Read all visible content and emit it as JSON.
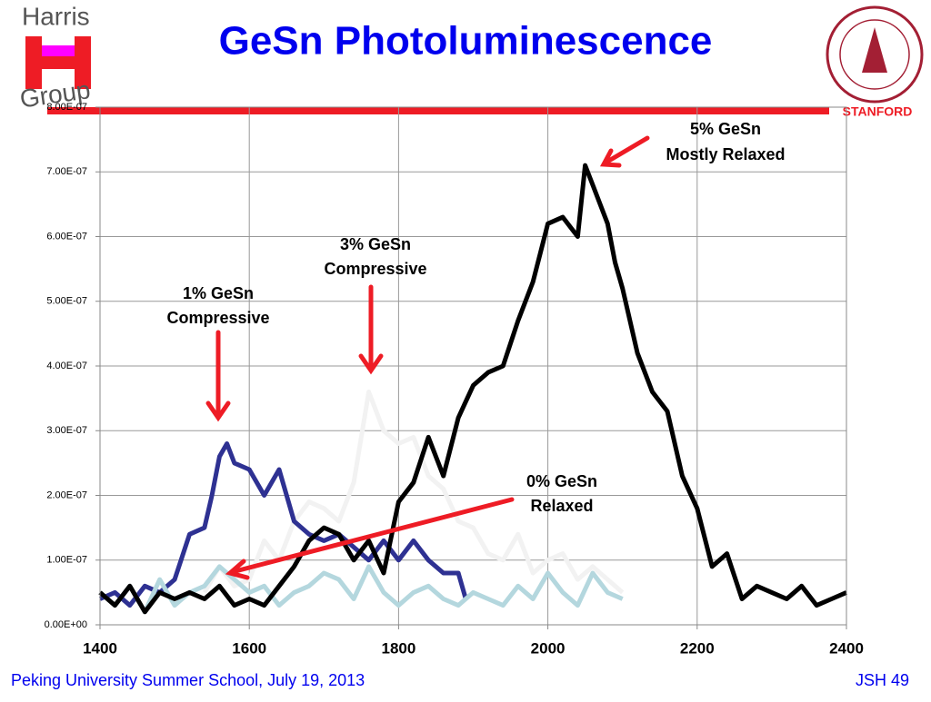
{
  "slide": {
    "logo_top": "Harris",
    "logo_bottom": "Group",
    "stanford": "STANFORD",
    "footer_left": "Peking University Summer School, July 19, 2013",
    "footer_right": "JSH 49"
  },
  "chart_data": {
    "type": "line",
    "title": "GeSn Photoluminescence",
    "annotations": [
      [
        "5% GeSn",
        "Mostly Relaxed"
      ],
      [
        "3% GeSn",
        "Compressive"
      ],
      [
        "1% GeSn",
        "Compressive"
      ],
      [
        "0% GeSn",
        "Relaxed"
      ]
    ],
    "xlim": [
      1400,
      2400
    ],
    "xticks": [
      1400,
      1600,
      1800,
      2000,
      2200,
      2400
    ],
    "ylim": [
      0,
      8e-07
    ],
    "yticks": [
      {
        "value": 0,
        "label": "0.00E+00"
      },
      {
        "value": 1e-07,
        "label": "1.00E-07"
      },
      {
        "value": 2e-07,
        "label": "2.00E-07"
      },
      {
        "value": 3e-07,
        "label": "3.00E-07"
      },
      {
        "value": 4e-07,
        "label": "4.00E-07"
      },
      {
        "value": 5e-07,
        "label": "5.00E-07"
      },
      {
        "value": 6e-07,
        "label": "6.00E-07"
      },
      {
        "value": 7e-07,
        "label": "7.00E-07"
      },
      {
        "value": 8e-07,
        "label": "8.00E-07"
      }
    ],
    "grid": true,
    "series": [
      {
        "color": "#f2f2f2",
        "x": [
          1540,
          1560,
          1580,
          1600,
          1620,
          1640,
          1660,
          1680,
          1700,
          1720,
          1740,
          1760,
          1780,
          1800,
          1820,
          1840,
          1860,
          1880,
          1900,
          1920,
          1940,
          1960,
          1980,
          2000,
          2020,
          2040,
          2060,
          2080,
          2100
        ],
        "values": [
          5e-08,
          9e-08,
          6e-08,
          7e-08,
          1.3e-07,
          1e-07,
          1.6e-07,
          1.9e-07,
          1.8e-07,
          1.6e-07,
          2.2e-07,
          3.6e-07,
          3e-07,
          2.8e-07,
          2.9e-07,
          2.3e-07,
          2.1e-07,
          1.6e-07,
          1.5e-07,
          1.1e-07,
          1e-07,
          1.4e-07,
          8e-08,
          1e-07,
          1.1e-07,
          7e-08,
          9e-08,
          7e-08,
          5e-08
        ]
      },
      {
        "color": "#2e3192",
        "x": [
          1400,
          1420,
          1440,
          1460,
          1480,
          1500,
          1520,
          1540,
          1550,
          1560,
          1570,
          1580,
          1600,
          1620,
          1640,
          1660,
          1680,
          1700,
          1720,
          1740,
          1760,
          1780,
          1800,
          1820,
          1840,
          1860,
          1880,
          1890
        ],
        "values": [
          4e-08,
          5e-08,
          3e-08,
          6e-08,
          5e-08,
          7e-08,
          1.4e-07,
          1.5e-07,
          2e-07,
          2.6e-07,
          2.8e-07,
          2.5e-07,
          2.4e-07,
          2e-07,
          2.4e-07,
          1.6e-07,
          1.4e-07,
          1.3e-07,
          1.4e-07,
          1.2e-07,
          1e-07,
          1.3e-07,
          1e-07,
          1.3e-07,
          1e-07,
          8e-08,
          8e-08,
          4e-08
        ]
      },
      {
        "color": "#b4d7de",
        "x": [
          1400,
          1420,
          1440,
          1460,
          1480,
          1500,
          1520,
          1540,
          1560,
          1580,
          1600,
          1620,
          1640,
          1660,
          1680,
          1700,
          1720,
          1740,
          1760,
          1780,
          1800,
          1820,
          1840,
          1860,
          1880,
          1900,
          1920,
          1940,
          1960,
          1980,
          2000,
          2020,
          2040,
          2060,
          2080,
          2100
        ],
        "values": [
          5e-08,
          3e-08,
          6e-08,
          2e-08,
          7e-08,
          3e-08,
          5e-08,
          6e-08,
          9e-08,
          7e-08,
          5e-08,
          6e-08,
          3e-08,
          5e-08,
          6e-08,
          8e-08,
          7e-08,
          4e-08,
          9e-08,
          5e-08,
          3e-08,
          5e-08,
          6e-08,
          4e-08,
          3e-08,
          5e-08,
          4e-08,
          3e-08,
          6e-08,
          4e-08,
          8e-08,
          5e-08,
          3e-08,
          8e-08,
          5e-08,
          4e-08
        ]
      },
      {
        "color": "#000000",
        "x": [
          1400,
          1420,
          1440,
          1460,
          1480,
          1500,
          1520,
          1540,
          1560,
          1580,
          1600,
          1620,
          1640,
          1660,
          1680,
          1700,
          1720,
          1740,
          1760,
          1780,
          1800,
          1820,
          1840,
          1860,
          1880,
          1900,
          1920,
          1940,
          1960,
          1980,
          2000,
          2020,
          2040,
          2050,
          2060,
          2080,
          2090,
          2100,
          2120,
          2140,
          2160,
          2180,
          2200,
          2220,
          2240,
          2260,
          2280,
          2300,
          2320,
          2340,
          2360,
          2380,
          2400
        ],
        "values": [
          5e-08,
          3e-08,
          6e-08,
          2e-08,
          5e-08,
          4e-08,
          5e-08,
          4e-08,
          6e-08,
          3e-08,
          4e-08,
          3e-08,
          6e-08,
          9e-08,
          1.3e-07,
          1.5e-07,
          1.4e-07,
          1e-07,
          1.3e-07,
          8e-08,
          1.9e-07,
          2.2e-07,
          2.9e-07,
          2.3e-07,
          3.2e-07,
          3.7e-07,
          3.9e-07,
          4e-07,
          4.7e-07,
          5.3e-07,
          6.2e-07,
          6.3e-07,
          6e-07,
          7.1e-07,
          6.8e-07,
          6.2e-07,
          5.6e-07,
          5.2e-07,
          4.2e-07,
          3.6e-07,
          3.3e-07,
          2.3e-07,
          1.8e-07,
          9e-08,
          1.1e-07,
          4e-08,
          6e-08,
          5e-08,
          4e-08,
          6e-08,
          3e-08,
          4e-08,
          5e-08
        ]
      }
    ]
  }
}
